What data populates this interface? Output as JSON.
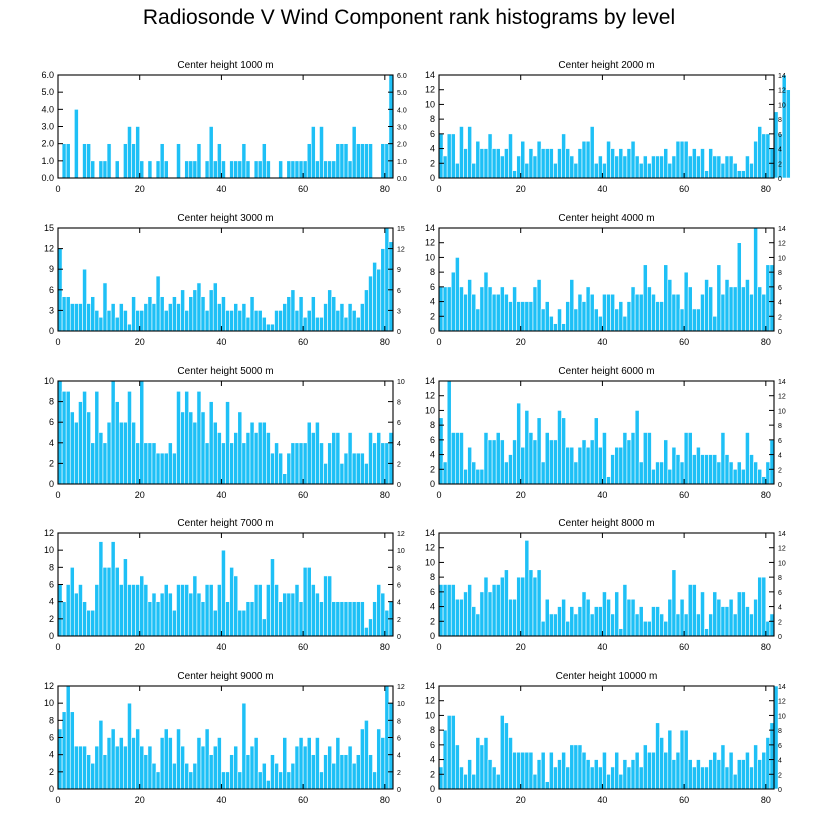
{
  "title": "Radiosonde V Wind Component rank histograms by level",
  "colors": {
    "bar": "#1ec0f6",
    "bar_edge": "#ffffff",
    "axis": "#000000"
  },
  "chart_data": [
    {
      "type": "bar",
      "title": "Center height 1000 m",
      "xlim": [
        0,
        82
      ],
      "xticks": [
        0,
        20,
        40,
        60,
        80
      ],
      "ylim": [
        0,
        6
      ],
      "yticks": [
        "0.0",
        "1.0",
        "2.0",
        "3.0",
        "4.0",
        "5.0",
        "6.0"
      ],
      "ytick_values": [
        0,
        1,
        2,
        3,
        4,
        5,
        6
      ],
      "values": [
        0,
        2,
        2,
        0,
        4,
        0,
        2,
        2,
        1,
        0,
        1,
        1,
        2,
        0,
        1,
        0,
        2,
        3,
        2,
        3,
        1,
        0,
        1,
        0,
        1,
        2,
        1,
        0,
        0,
        2,
        0,
        1,
        1,
        1,
        2,
        0,
        1,
        3,
        1,
        2,
        1,
        0,
        1,
        1,
        1,
        2,
        1,
        0,
        1,
        1,
        2,
        1,
        0,
        0,
        1,
        0,
        1,
        1,
        1,
        1,
        1,
        2,
        3,
        1,
        3,
        1,
        1,
        1,
        2,
        2,
        2,
        1,
        3,
        2,
        2,
        2,
        2,
        0,
        0,
        2,
        2,
        6
      ]
    },
    {
      "type": "bar",
      "title": "Center height 2000 m",
      "xlim": [
        0,
        82
      ],
      "xticks": [
        0,
        20,
        40,
        60,
        80
      ],
      "ylim": [
        0,
        14
      ],
      "yticks": [
        "0",
        "2",
        "4",
        "6",
        "8",
        "10",
        "12",
        "14"
      ],
      "ytick_values": [
        0,
        2,
        4,
        6,
        8,
        10,
        12,
        14
      ],
      "values": [
        6,
        3,
        6,
        6,
        2,
        7,
        4,
        7,
        2,
        5,
        4,
        4,
        6,
        4,
        4,
        3,
        4,
        6,
        1,
        3,
        5,
        2,
        4,
        3,
        5,
        4,
        4,
        4,
        2,
        4,
        6,
        4,
        3,
        2,
        4,
        5,
        5,
        7,
        2,
        3,
        2,
        5,
        4,
        3,
        4,
        3,
        4,
        5,
        3,
        2,
        3,
        2,
        3,
        3,
        3,
        4,
        2,
        3,
        5,
        5,
        5,
        3,
        4,
        3,
        4,
        1,
        4,
        3,
        3,
        2,
        3,
        3,
        2,
        1,
        1,
        3,
        2,
        5,
        7,
        6,
        6,
        4,
        9,
        6,
        14,
        12
      ]
    },
    {
      "type": "bar",
      "title": "Center height 3000 m",
      "xlim": [
        0,
        82
      ],
      "xticks": [
        0,
        20,
        40,
        60,
        80
      ],
      "ylim": [
        0,
        15
      ],
      "yticks": [
        "0",
        "3",
        "6",
        "9",
        "12",
        "15"
      ],
      "ytick_values": [
        0,
        3,
        6,
        9,
        12,
        15
      ],
      "values": [
        12,
        5,
        5,
        4,
        4,
        4,
        9,
        4,
        5,
        3,
        2,
        7,
        3,
        4,
        2,
        4,
        3,
        1,
        5,
        3,
        3,
        4,
        5,
        4,
        8,
        5,
        3,
        4,
        5,
        4,
        6,
        3,
        5,
        6,
        7,
        5,
        3,
        6,
        7,
        4,
        5,
        3,
        3,
        4,
        3,
        4,
        2,
        5,
        3,
        3,
        2,
        1,
        1,
        3,
        3,
        4,
        5,
        6,
        3,
        5,
        2,
        3,
        5,
        2,
        2,
        4,
        6,
        5,
        3,
        4,
        2,
        4,
        3,
        2,
        4,
        6,
        8,
        10,
        9,
        12,
        15,
        13
      ]
    },
    {
      "type": "bar",
      "title": "Center height 4000 m",
      "xlim": [
        0,
        82
      ],
      "xticks": [
        0,
        20,
        40,
        60,
        80
      ],
      "ylim": [
        0,
        14
      ],
      "yticks": [
        "0",
        "2",
        "4",
        "6",
        "8",
        "10",
        "12",
        "14"
      ],
      "ytick_values": [
        0,
        2,
        4,
        6,
        8,
        10,
        12,
        14
      ],
      "values": [
        6,
        6,
        6,
        8,
        10,
        6,
        5,
        7,
        5,
        3,
        6,
        8,
        6,
        5,
        5,
        6,
        5,
        4,
        6,
        4,
        4,
        4,
        4,
        6,
        7,
        3,
        4,
        2,
        1,
        3,
        1,
        4,
        7,
        3,
        5,
        4,
        6,
        5,
        3,
        2,
        5,
        5,
        5,
        3,
        4,
        2,
        4,
        6,
        5,
        5,
        9,
        6,
        5,
        4,
        4,
        9,
        7,
        5,
        5,
        3,
        8,
        6,
        3,
        3,
        5,
        7,
        6,
        2,
        9,
        5,
        7,
        6,
        6,
        12,
        6,
        7,
        5,
        14,
        6,
        5,
        9,
        9
      ]
    },
    {
      "type": "bar",
      "title": "Center height 5000 m",
      "xlim": [
        0,
        82
      ],
      "xticks": [
        0,
        20,
        40,
        60,
        80
      ],
      "ylim": [
        0,
        10
      ],
      "yticks": [
        "0",
        "2",
        "4",
        "6",
        "8",
        "10"
      ],
      "ytick_values": [
        0,
        2,
        4,
        6,
        8,
        10
      ],
      "values": [
        10,
        9,
        9,
        7,
        6,
        8,
        9,
        7,
        4,
        9,
        5,
        4,
        6,
        10,
        8,
        6,
        6,
        9,
        6,
        4,
        10,
        4,
        4,
        4,
        3,
        3,
        3,
        4,
        3,
        9,
        7,
        9,
        7,
        6,
        9,
        7,
        4,
        8,
        6,
        5,
        4,
        8,
        4,
        5,
        7,
        4,
        5,
        6,
        5,
        6,
        6,
        5,
        3,
        4,
        3,
        1,
        3,
        4,
        4,
        4,
        4,
        6,
        5,
        6,
        4,
        2,
        4,
        5,
        5,
        2,
        3,
        5,
        3,
        3,
        3,
        2,
        5,
        4,
        5,
        4,
        4,
        5
      ]
    },
    {
      "type": "bar",
      "title": "Center height 6000 m",
      "xlim": [
        0,
        82
      ],
      "xticks": [
        0,
        20,
        40,
        60,
        80
      ],
      "ylim": [
        0,
        14
      ],
      "yticks": [
        "0",
        "2",
        "4",
        "6",
        "8",
        "10",
        "12",
        "14"
      ],
      "ytick_values": [
        0,
        2,
        4,
        6,
        8,
        10,
        12,
        14
      ],
      "values": [
        9,
        3,
        14,
        7,
        7,
        7,
        2,
        5,
        3,
        2,
        2,
        7,
        6,
        6,
        7,
        6,
        3,
        4,
        6,
        11,
        5,
        10,
        7,
        6,
        9,
        3,
        7,
        6,
        6,
        10,
        9,
        5,
        5,
        3,
        5,
        6,
        5,
        6,
        9,
        5,
        7,
        1,
        4,
        5,
        5,
        7,
        6,
        7,
        10,
        3,
        7,
        7,
        2,
        3,
        3,
        6,
        2,
        5,
        4,
        3,
        7,
        7,
        4,
        5,
        4,
        4,
        4,
        4,
        3,
        7,
        4,
        3,
        2,
        3,
        2,
        7,
        4,
        3,
        2,
        1,
        3,
        6
      ]
    },
    {
      "type": "bar",
      "title": "Center height 7000 m",
      "xlim": [
        0,
        82
      ],
      "xticks": [
        0,
        20,
        40,
        60,
        80
      ],
      "ylim": [
        0,
        12
      ],
      "yticks": [
        "0",
        "2",
        "4",
        "6",
        "8",
        "10",
        "12"
      ],
      "ytick_values": [
        0,
        2,
        4,
        6,
        8,
        10,
        12
      ],
      "values": [
        6,
        4,
        6,
        8,
        5,
        6,
        4,
        3,
        3,
        6,
        11,
        8,
        8,
        11,
        8,
        6,
        9,
        6,
        6,
        6,
        7,
        6,
        4,
        5,
        4,
        5,
        6,
        5,
        3,
        6,
        6,
        6,
        5,
        7,
        5,
        4,
        6,
        6,
        3,
        6,
        10,
        4,
        8,
        7,
        3,
        3,
        4,
        4,
        6,
        6,
        2,
        6,
        9,
        6,
        4,
        5,
        5,
        5,
        6,
        4,
        8,
        8,
        6,
        5,
        4,
        7,
        7,
        4,
        4,
        4,
        4,
        4,
        4,
        4,
        4,
        1,
        2,
        4,
        6,
        5,
        3,
        4
      ]
    },
    {
      "type": "bar",
      "title": "Center height 8000 m",
      "xlim": [
        0,
        82
      ],
      "xticks": [
        0,
        20,
        40,
        60,
        80
      ],
      "ylim": [
        0,
        14
      ],
      "yticks": [
        "0",
        "2",
        "4",
        "6",
        "8",
        "10",
        "12",
        "14"
      ],
      "ytick_values": [
        0,
        2,
        4,
        6,
        8,
        10,
        12,
        14
      ],
      "values": [
        7,
        7,
        7,
        7,
        5,
        5,
        6,
        7,
        4,
        3,
        6,
        8,
        6,
        7,
        7,
        8,
        9,
        5,
        5,
        8,
        8,
        13,
        9,
        8,
        9,
        2,
        5,
        3,
        3,
        4,
        5,
        2,
        4,
        3,
        4,
        6,
        5,
        3,
        4,
        4,
        6,
        5,
        3,
        6,
        1,
        7,
        5,
        5,
        3,
        4,
        2,
        2,
        4,
        4,
        3,
        2,
        5,
        9,
        3,
        5,
        3,
        7,
        7,
        3,
        6,
        1,
        3,
        6,
        5,
        4,
        4,
        5,
        3,
        6,
        6,
        4,
        3,
        5,
        8,
        8,
        2,
        3
      ]
    },
    {
      "type": "bar",
      "title": "Center height 9000 m",
      "xlim": [
        0,
        82
      ],
      "xticks": [
        0,
        20,
        40,
        60,
        80
      ],
      "ylim": [
        0,
        12
      ],
      "yticks": [
        "0",
        "2",
        "4",
        "6",
        "8",
        "10",
        "12"
      ],
      "ytick_values": [
        0,
        2,
        4,
        6,
        8,
        10,
        12
      ],
      "values": [
        7,
        9,
        12,
        9,
        5,
        5,
        5,
        4,
        3,
        5,
        8,
        4,
        6,
        7,
        5,
        6,
        5,
        10,
        6,
        7,
        5,
        4,
        5,
        3,
        2,
        6,
        7,
        6,
        3,
        7,
        5,
        3,
        2,
        3,
        6,
        5,
        7,
        4,
        5,
        6,
        2,
        2,
        4,
        5,
        2,
        10,
        4,
        5,
        6,
        2,
        3,
        1,
        4,
        3,
        2,
        6,
        2,
        3,
        5,
        6,
        5,
        6,
        4,
        6,
        2,
        4,
        5,
        3,
        6,
        4,
        4,
        5,
        3,
        4,
        7,
        8,
        4,
        2,
        7,
        6,
        12,
        10
      ]
    },
    {
      "type": "bar",
      "title": "Center height 10000 m",
      "xlim": [
        0,
        82
      ],
      "xticks": [
        0,
        20,
        40,
        60,
        80
      ],
      "ylim": [
        0,
        14
      ],
      "yticks": [
        "0",
        "2",
        "4",
        "6",
        "8",
        "10",
        "12",
        "14"
      ],
      "ytick_values": [
        0,
        2,
        4,
        6,
        8,
        10,
        12,
        14
      ],
      "values": [
        3,
        8,
        10,
        10,
        6,
        3,
        2,
        4,
        2,
        7,
        6,
        7,
        4,
        3,
        2,
        10,
        9,
        7,
        5,
        5,
        5,
        5,
        5,
        2,
        4,
        5,
        1,
        5,
        3,
        4,
        5,
        3,
        6,
        6,
        6,
        5,
        4,
        3,
        4,
        3,
        5,
        2,
        3,
        5,
        2,
        4,
        3,
        4,
        5,
        3,
        6,
        5,
        5,
        9,
        7,
        5,
        8,
        4,
        5,
        8,
        8,
        4,
        3,
        4,
        3,
        3,
        4,
        5,
        4,
        6,
        3,
        5,
        2,
        4,
        4,
        5,
        3,
        6,
        4,
        5,
        7,
        9,
        14
      ]
    }
  ]
}
